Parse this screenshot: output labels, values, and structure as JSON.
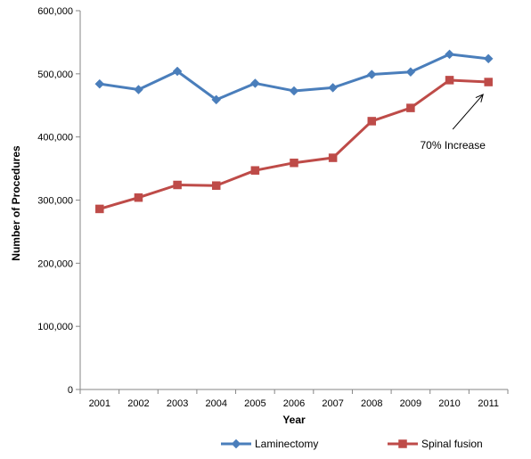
{
  "chart_data": {
    "type": "line",
    "title": "",
    "xlabel": "Year",
    "ylabel": "Number of Procedures",
    "categories": [
      "2001",
      "2002",
      "2003",
      "2004",
      "2005",
      "2006",
      "2007",
      "2008",
      "2009",
      "2010",
      "2011"
    ],
    "ylim": [
      0,
      600000
    ],
    "yticks": [
      0,
      100000,
      200000,
      300000,
      400000,
      500000,
      600000
    ],
    "ytick_labels": [
      "0",
      "100,000",
      "200,000",
      "300,000",
      "400,000",
      "500,000",
      "600,000"
    ],
    "grid": false,
    "legend_position": "bottom",
    "series": [
      {
        "name": "Laminectomy",
        "color": "#4A7EBB",
        "marker": "diamond",
        "values": [
          484000,
          475000,
          504000,
          459000,
          485000,
          473000,
          478000,
          499000,
          503000,
          531000,
          524000
        ]
      },
      {
        "name": "Spinal fusion",
        "color": "#BE4B48",
        "marker": "square",
        "values": [
          286000,
          304000,
          324000,
          323000,
          347000,
          359000,
          367000,
          425000,
          446000,
          490000,
          487000
        ]
      }
    ],
    "annotations": [
      {
        "text": "70% Increase",
        "points_to_category": "2011",
        "points_to_series": "Spinal fusion"
      }
    ]
  }
}
